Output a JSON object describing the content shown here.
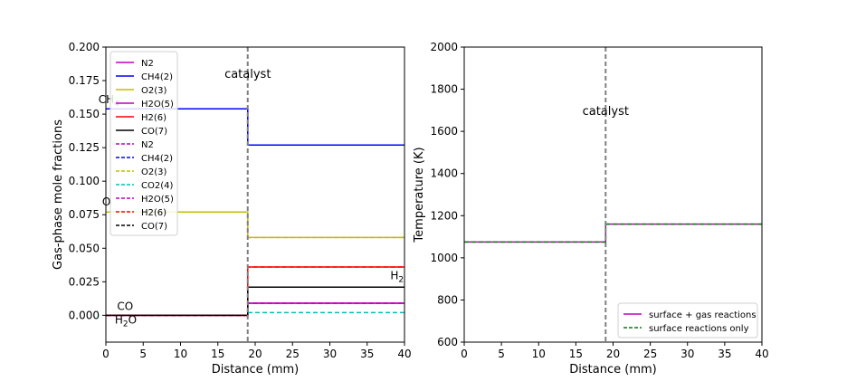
{
  "chart_data": [
    {
      "type": "line",
      "title": "",
      "xlabel": "Distance (mm)",
      "ylabel": "Gas-phase mole fractions",
      "xlim": [
        0,
        40
      ],
      "ylim": [
        -0.02,
        0.2
      ],
      "xticks": [
        "0",
        "5",
        "10",
        "15",
        "20",
        "25",
        "30",
        "35",
        "40"
      ],
      "yticks": [
        "0.000",
        "0.025",
        "0.050",
        "0.075",
        "0.100",
        "0.125",
        "0.150",
        "0.175",
        "0.200"
      ],
      "grid": false,
      "legend_position": "top-left",
      "catalyst_x": 19,
      "catalyst_label": "catalyst",
      "series": [
        {
          "name": "N2",
          "style": "solid",
          "color": "#bf00bf",
          "x": [
            0,
            19,
            19,
            40
          ],
          "y": [
            0.0,
            0.0,
            0.009,
            0.009
          ]
        },
        {
          "name": "CH4(2)",
          "style": "solid",
          "color": "#0000ff",
          "x": [
            0,
            19,
            19,
            40
          ],
          "y": [
            0.154,
            0.154,
            0.127,
            0.127
          ]
        },
        {
          "name": "O2(3)",
          "style": "solid",
          "color": "#bfbf00",
          "x": [
            0,
            19,
            19,
            40
          ],
          "y": [
            0.077,
            0.077,
            0.058,
            0.058
          ]
        },
        {
          "name": "H2O(5)",
          "style": "solid",
          "color": "#bf00bf",
          "x": [
            0,
            19,
            19,
            40
          ],
          "y": [
            0.0,
            0.0,
            0.009,
            0.009
          ]
        },
        {
          "name": "H2(6)",
          "style": "solid",
          "color": "#ff0000",
          "x": [
            0,
            19,
            19,
            40
          ],
          "y": [
            0.0,
            0.0,
            0.036,
            0.036
          ]
        },
        {
          "name": "CO(7)",
          "style": "solid",
          "color": "#000000",
          "x": [
            0,
            19,
            19,
            40
          ],
          "y": [
            0.0,
            0.0,
            0.021,
            0.021
          ]
        },
        {
          "name": "N2",
          "style": "dashed",
          "color": "#bf00bf",
          "x": [
            0,
            19,
            19,
            40
          ],
          "y": [
            0.0,
            0.0,
            0.009,
            0.009
          ]
        },
        {
          "name": "CH4(2)",
          "style": "dashed",
          "color": "#0000ff",
          "x": [
            0,
            19,
            19,
            40
          ],
          "y": [
            0.154,
            0.154,
            0.127,
            0.127
          ]
        },
        {
          "name": "O2(3)",
          "style": "dashed",
          "color": "#bfbf00",
          "x": [
            0,
            19,
            19,
            40
          ],
          "y": [
            0.077,
            0.077,
            0.058,
            0.058
          ]
        },
        {
          "name": "CO2(4)",
          "style": "dashed",
          "color": "#00bfbf",
          "x": [
            0,
            19,
            19,
            40
          ],
          "y": [
            0.0,
            0.0,
            0.002,
            0.002
          ]
        },
        {
          "name": "H2O(5)",
          "style": "dashed",
          "color": "#bf00bf",
          "x": [
            0,
            19,
            19,
            40
          ],
          "y": [
            0.0,
            0.0,
            0.009,
            0.009
          ]
        },
        {
          "name": "H2(6)",
          "style": "dashed",
          "color": "#ff0000",
          "x": [
            0,
            19,
            19,
            40
          ],
          "y": [
            0.0,
            0.0,
            0.036,
            0.036
          ]
        },
        {
          "name": "CO(7)",
          "style": "dashed",
          "color": "#000000",
          "x": [
            0,
            19,
            19,
            40
          ],
          "y": [
            0.0,
            0.0,
            0.021,
            0.021
          ]
        }
      ],
      "annotations": [
        {
          "text": "CH4",
          "x": -1,
          "y": 0.158
        },
        {
          "text": "O",
          "x": -0.5,
          "y": 0.082
        },
        {
          "text": "CO",
          "x": 1.5,
          "y": 0.004
        },
        {
          "text": "H2O",
          "x": 1.2,
          "y": -0.006
        },
        {
          "text": "H2",
          "x": 39,
          "y": 0.027
        }
      ]
    },
    {
      "type": "line",
      "title": "",
      "xlabel": "Distance (mm)",
      "ylabel": "Temperature (K)",
      "xlim": [
        0,
        40
      ],
      "ylim": [
        600,
        2000
      ],
      "xticks": [
        "0",
        "5",
        "10",
        "15",
        "20",
        "25",
        "30",
        "35",
        "40"
      ],
      "yticks": [
        "600",
        "800",
        "1000",
        "1200",
        "1400",
        "1600",
        "1800",
        "2000"
      ],
      "grid": false,
      "legend_position": "bottom-right",
      "catalyst_x": 19,
      "catalyst_label": "catalyst",
      "series": [
        {
          "name": "surface + gas reactions",
          "style": "solid",
          "color": "#bf00bf",
          "x": [
            0,
            19,
            19,
            40
          ],
          "y": [
            1075,
            1075,
            1160,
            1160
          ]
        },
        {
          "name": "surface reactions only",
          "style": "dashed",
          "color": "#008000",
          "x": [
            0,
            19,
            19,
            40
          ],
          "y": [
            1075,
            1075,
            1160,
            1160
          ]
        }
      ],
      "annotations": []
    }
  ]
}
